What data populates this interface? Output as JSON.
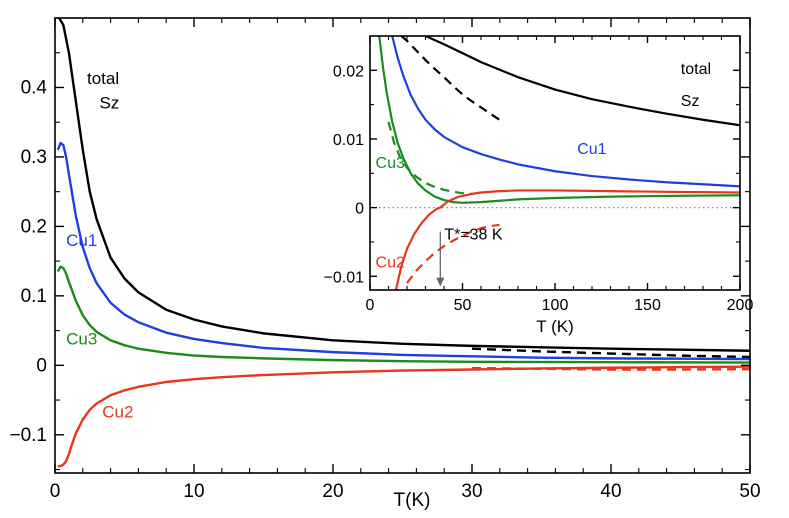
{
  "chart_data": [
    {
      "panel": "main",
      "type": "line",
      "title": "",
      "xlabel": "T(K)",
      "ylabel": "",
      "xlim": [
        0,
        50
      ],
      "ylim": [
        -0.155,
        0.5
      ],
      "xticks": [
        0,
        10,
        20,
        30,
        40,
        50
      ],
      "xtick_labels": [
        "0",
        "10",
        "20",
        "30",
        "40",
        "50"
      ],
      "yticks": [
        -0.1,
        0,
        0.1,
        0.2,
        0.3,
        0.4
      ],
      "ytick_labels": [
        "−0.1",
        "0",
        "0.1",
        "0.2",
        "0.3",
        "0.4"
      ],
      "grid": false,
      "series": [
        {
          "name": "total Sz",
          "color": "#000000",
          "dash": "solid",
          "x": [
            0.3,
            0.6,
            1,
            1.5,
            2,
            2.5,
            3,
            4,
            5,
            6,
            8,
            10,
            12,
            15,
            20,
            25,
            30,
            35,
            40,
            45,
            50
          ],
          "y": [
            0.5,
            0.49,
            0.45,
            0.38,
            0.31,
            0.25,
            0.21,
            0.155,
            0.125,
            0.105,
            0.08,
            0.066,
            0.056,
            0.046,
            0.036,
            0.031,
            0.028,
            0.026,
            0.024,
            0.0225,
            0.021
          ]
        },
        {
          "name": "total Sz (dashed)",
          "color": "#000000",
          "dash": "dashed",
          "x": [
            30,
            35,
            40,
            45,
            50
          ],
          "y": [
            0.024,
            0.02,
            0.017,
            0.014,
            0.012
          ]
        },
        {
          "name": "Cu1",
          "color": "#1f3fe0",
          "dash": "solid",
          "x": [
            0.2,
            0.4,
            0.6,
            0.8,
            1,
            1.5,
            2,
            2.5,
            3,
            4,
            5,
            6,
            8,
            10,
            12,
            15,
            20,
            25,
            30,
            35,
            40,
            45,
            50
          ],
          "y": [
            0.31,
            0.32,
            0.317,
            0.3,
            0.275,
            0.215,
            0.17,
            0.14,
            0.118,
            0.09,
            0.073,
            0.062,
            0.047,
            0.038,
            0.032,
            0.025,
            0.019,
            0.015,
            0.013,
            0.011,
            0.01,
            0.0095,
            0.009
          ]
        },
        {
          "name": "Cu3",
          "color": "#1a8c1a",
          "dash": "solid",
          "x": [
            0.2,
            0.4,
            0.6,
            0.8,
            1,
            1.5,
            2,
            2.5,
            3,
            4,
            5,
            6,
            8,
            10,
            12,
            15,
            20,
            25,
            30,
            40,
            50
          ],
          "y": [
            0.135,
            0.142,
            0.14,
            0.132,
            0.12,
            0.093,
            0.072,
            0.058,
            0.048,
            0.036,
            0.029,
            0.024,
            0.018,
            0.014,
            0.012,
            0.01,
            0.0075,
            0.006,
            0.005,
            0.0045,
            0.004
          ]
        },
        {
          "name": "Cu2",
          "color": "#e8361a",
          "dash": "solid",
          "x": [
            0.2,
            0.4,
            0.6,
            0.8,
            1,
            1.2,
            1.5,
            2,
            2.5,
            3,
            4,
            5,
            6,
            8,
            10,
            12,
            15,
            20,
            25,
            30,
            35,
            40,
            45,
            50
          ],
          "y": [
            -0.145,
            -0.145,
            -0.143,
            -0.138,
            -0.128,
            -0.115,
            -0.098,
            -0.078,
            -0.064,
            -0.055,
            -0.043,
            -0.036,
            -0.031,
            -0.024,
            -0.02,
            -0.017,
            -0.014,
            -0.01,
            -0.0075,
            -0.006,
            -0.0045,
            -0.0035,
            -0.0025,
            -0.002
          ]
        },
        {
          "name": "Cu2 (dashed)",
          "color": "#e8361a",
          "dash": "dashed",
          "x": [
            30,
            35,
            40,
            45,
            50
          ],
          "y": [
            -0.004,
            -0.005,
            -0.006,
            -0.006,
            -0.0055
          ]
        }
      ],
      "annotations": [
        {
          "text": "total",
          "x": 2.3,
          "y": 0.405,
          "color": "#000000"
        },
        {
          "text": "Sz",
          "x": 3.2,
          "y": 0.37,
          "color": "#000000"
        },
        {
          "text": "Cu1",
          "x": 0.8,
          "y": 0.172,
          "color": "#1f3fe0"
        },
        {
          "text": "Cu3",
          "x": 0.8,
          "y": 0.03,
          "color": "#1a8c1a"
        },
        {
          "text": "Cu2",
          "x": 3.4,
          "y": -0.075,
          "color": "#e8361a"
        }
      ]
    },
    {
      "panel": "inset",
      "type": "line",
      "title": "",
      "xlabel": "T (K)",
      "ylabel": "",
      "xlim": [
        0,
        200
      ],
      "ylim": [
        -0.012,
        0.025
      ],
      "xticks": [
        0,
        50,
        100,
        150,
        200
      ],
      "xtick_labels": [
        "0",
        "50",
        "100",
        "150",
        "200"
      ],
      "yticks": [
        -0.01,
        0,
        0.01,
        0.02
      ],
      "ytick_labels": [
        "−0.01",
        "0",
        "0.01",
        "0.02"
      ],
      "grid": false,
      "zero_line": "dotted",
      "series": [
        {
          "name": "total Sz",
          "color": "#000000",
          "dash": "solid",
          "x": [
            30,
            40,
            50,
            60,
            70,
            80,
            100,
            120,
            140,
            160,
            180,
            200
          ],
          "y": [
            0.025,
            0.0238,
            0.0225,
            0.0212,
            0.0201,
            0.019,
            0.0172,
            0.0158,
            0.0147,
            0.0137,
            0.0128,
            0.012
          ]
        },
        {
          "name": "total Sz (dashed)",
          "color": "#000000",
          "dash": "dashed",
          "x": [
            17,
            20,
            25,
            30,
            35,
            40,
            45,
            50,
            55,
            60,
            65,
            70
          ],
          "y": [
            0.025,
            0.0243,
            0.0229,
            0.0215,
            0.0202,
            0.019,
            0.0177,
            0.0165,
            0.0155,
            0.0146,
            0.0137,
            0.0128
          ]
        },
        {
          "name": "Cu1",
          "color": "#1f3fe0",
          "dash": "solid",
          "x": [
            12,
            15,
            18,
            22,
            26,
            30,
            35,
            40,
            50,
            60,
            70,
            80,
            100,
            120,
            140,
            160,
            180,
            200
          ],
          "y": [
            0.025,
            0.0218,
            0.0192,
            0.0164,
            0.0144,
            0.0128,
            0.0114,
            0.0103,
            0.0088,
            0.0078,
            0.007,
            0.0063,
            0.0053,
            0.0046,
            0.0041,
            0.0037,
            0.0034,
            0.0031
          ]
        },
        {
          "name": "Cu3",
          "color": "#1a8c1a",
          "dash": "solid",
          "x": [
            5,
            7,
            9,
            12,
            15,
            18,
            22,
            26,
            30,
            35,
            40,
            45,
            50,
            60,
            70,
            80,
            100,
            130,
            160,
            200
          ],
          "y": [
            0.025,
            0.0205,
            0.0168,
            0.0125,
            0.0094,
            0.0072,
            0.005,
            0.0035,
            0.0025,
            0.0016,
            0.0011,
            0.0008,
            0.0007,
            0.0008,
            0.001,
            0.0012,
            0.0014,
            0.0016,
            0.0017,
            0.0018
          ]
        },
        {
          "name": "Cu3 (dashed)",
          "color": "#1a8c1a",
          "dash": "dashed",
          "x": [
            10,
            13,
            16,
            20,
            25,
            30,
            35,
            40,
            45,
            50,
            55
          ],
          "y": [
            0.0125,
            0.0095,
            0.0075,
            0.0058,
            0.0045,
            0.0036,
            0.003,
            0.0026,
            0.0023,
            0.0021,
            0.002
          ]
        },
        {
          "name": "Cu2",
          "color": "#e8361a",
          "dash": "solid",
          "x": [
            14,
            17,
            20,
            24,
            28,
            32,
            36,
            38,
            42,
            48,
            55,
            60,
            70,
            80,
            100,
            130,
            160,
            200
          ],
          "y": [
            -0.012,
            -0.0085,
            -0.006,
            -0.0038,
            -0.0022,
            -0.001,
            -0.0002,
            0,
            0.0009,
            0.0016,
            0.002,
            0.0022,
            0.0024,
            0.0025,
            0.0025,
            0.0024,
            0.0023,
            0.0022
          ]
        },
        {
          "name": "Cu2 (dashed)",
          "color": "#e8361a",
          "dash": "dashed",
          "x": [
            20,
            25,
            30,
            35,
            40,
            45,
            50,
            55,
            60,
            65,
            70
          ],
          "y": [
            -0.011,
            -0.0092,
            -0.0078,
            -0.0066,
            -0.0056,
            -0.0048,
            -0.0041,
            -0.0035,
            -0.003,
            -0.0027,
            -0.0025
          ]
        }
      ],
      "marker": {
        "text": "T*=38 K",
        "x": 38,
        "from_y": -0.0035,
        "to_y": -0.0115
      },
      "annotations": [
        {
          "text": "total",
          "x": 168,
          "y": 0.0195,
          "color": "#000000"
        },
        {
          "text": "Sz",
          "x": 168,
          "y": 0.0148,
          "color": "#000000"
        },
        {
          "text": "Cu1",
          "x": 112,
          "y": 0.0078,
          "color": "#1f3fe0"
        },
        {
          "text": "Cu3",
          "x": 3,
          "y": 0.0058,
          "color": "#1a8c1a"
        },
        {
          "text": "Cu2",
          "x": 3,
          "y": -0.0087,
          "color": "#e8361a"
        }
      ]
    }
  ]
}
